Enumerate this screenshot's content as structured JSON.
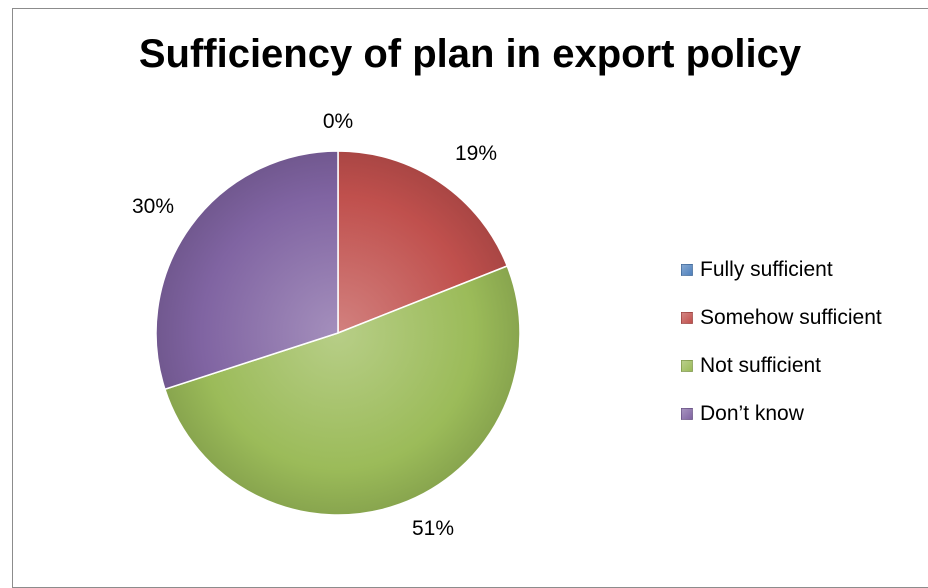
{
  "chart_data": {
    "type": "pie",
    "title": "Sufficiency of plan in export policy",
    "categories": [
      "Fully sufficient",
      "Somehow sufficient",
      "Not sufficient",
      "Don’t know"
    ],
    "values": [
      0,
      19,
      51,
      30
    ],
    "data_labels": [
      "0%",
      "19%",
      "51%",
      "30%"
    ],
    "colors": [
      "#4f81bd",
      "#c0504d",
      "#9bbb59",
      "#8064a2"
    ],
    "legend_position": "right"
  }
}
